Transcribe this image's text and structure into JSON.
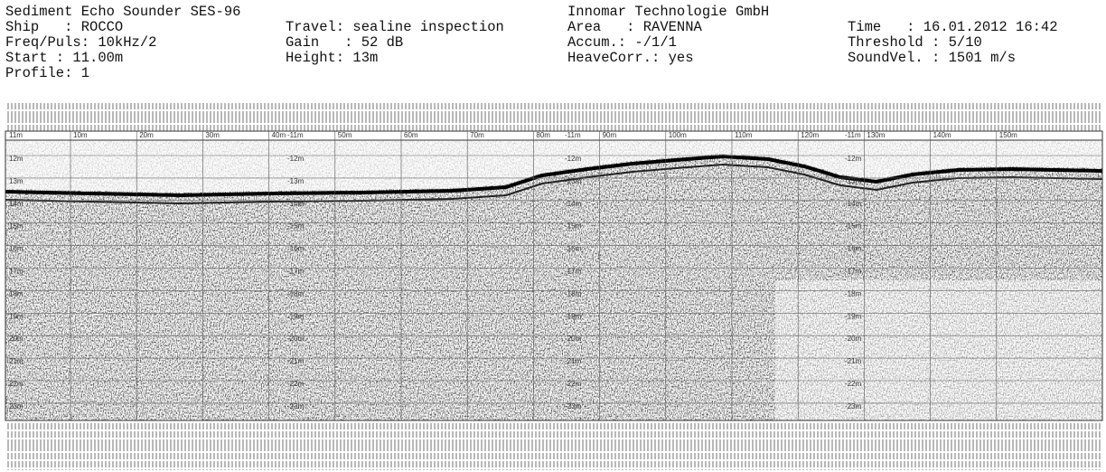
{
  "header": {
    "rows": [
      [
        "Sediment Echo Sounder SES-96",
        null,
        "Innomar Technologie GmbH",
        null
      ],
      [
        "Ship   : ROCCO",
        "Travel: sealine inspection",
        "Area   : RAVENNA",
        "Time   : 16.01.2012 16:42"
      ],
      [
        "Freq/Puls: 10kHz/2",
        "Gain   : 52 dB",
        "Accum.: -/1/1",
        "Threshold : 5/10"
      ],
      [
        "Start : 11.00m",
        "Height: 13m",
        "HeaveCorr.: yes",
        "SoundVel. : 1501 m/s"
      ],
      [
        "Profile: 1",
        null,
        null,
        null
      ]
    ]
  },
  "record": {
    "distance_labels": [
      "10m",
      "20m",
      "30m",
      "40m",
      "50m",
      "60m",
      "70m",
      "80m",
      "90m",
      "100m",
      "110m",
      "120m",
      "130m",
      "140m",
      "150m"
    ],
    "start_depth_left": "11m",
    "start_depth_marker": "-11m",
    "depth_labels_left": [
      "12m",
      "13m",
      "14m",
      "15m",
      "16m",
      "17m",
      "18m",
      "19m",
      "20m",
      "21m",
      "22m",
      "23m"
    ],
    "depth_labels_marker": [
      "-12m",
      "-13m",
      "-14m",
      "-15m",
      "-16m",
      "-17m",
      "-18m",
      "-19m",
      "-20m",
      "-21m",
      "-22m",
      "-23m"
    ]
  }
}
